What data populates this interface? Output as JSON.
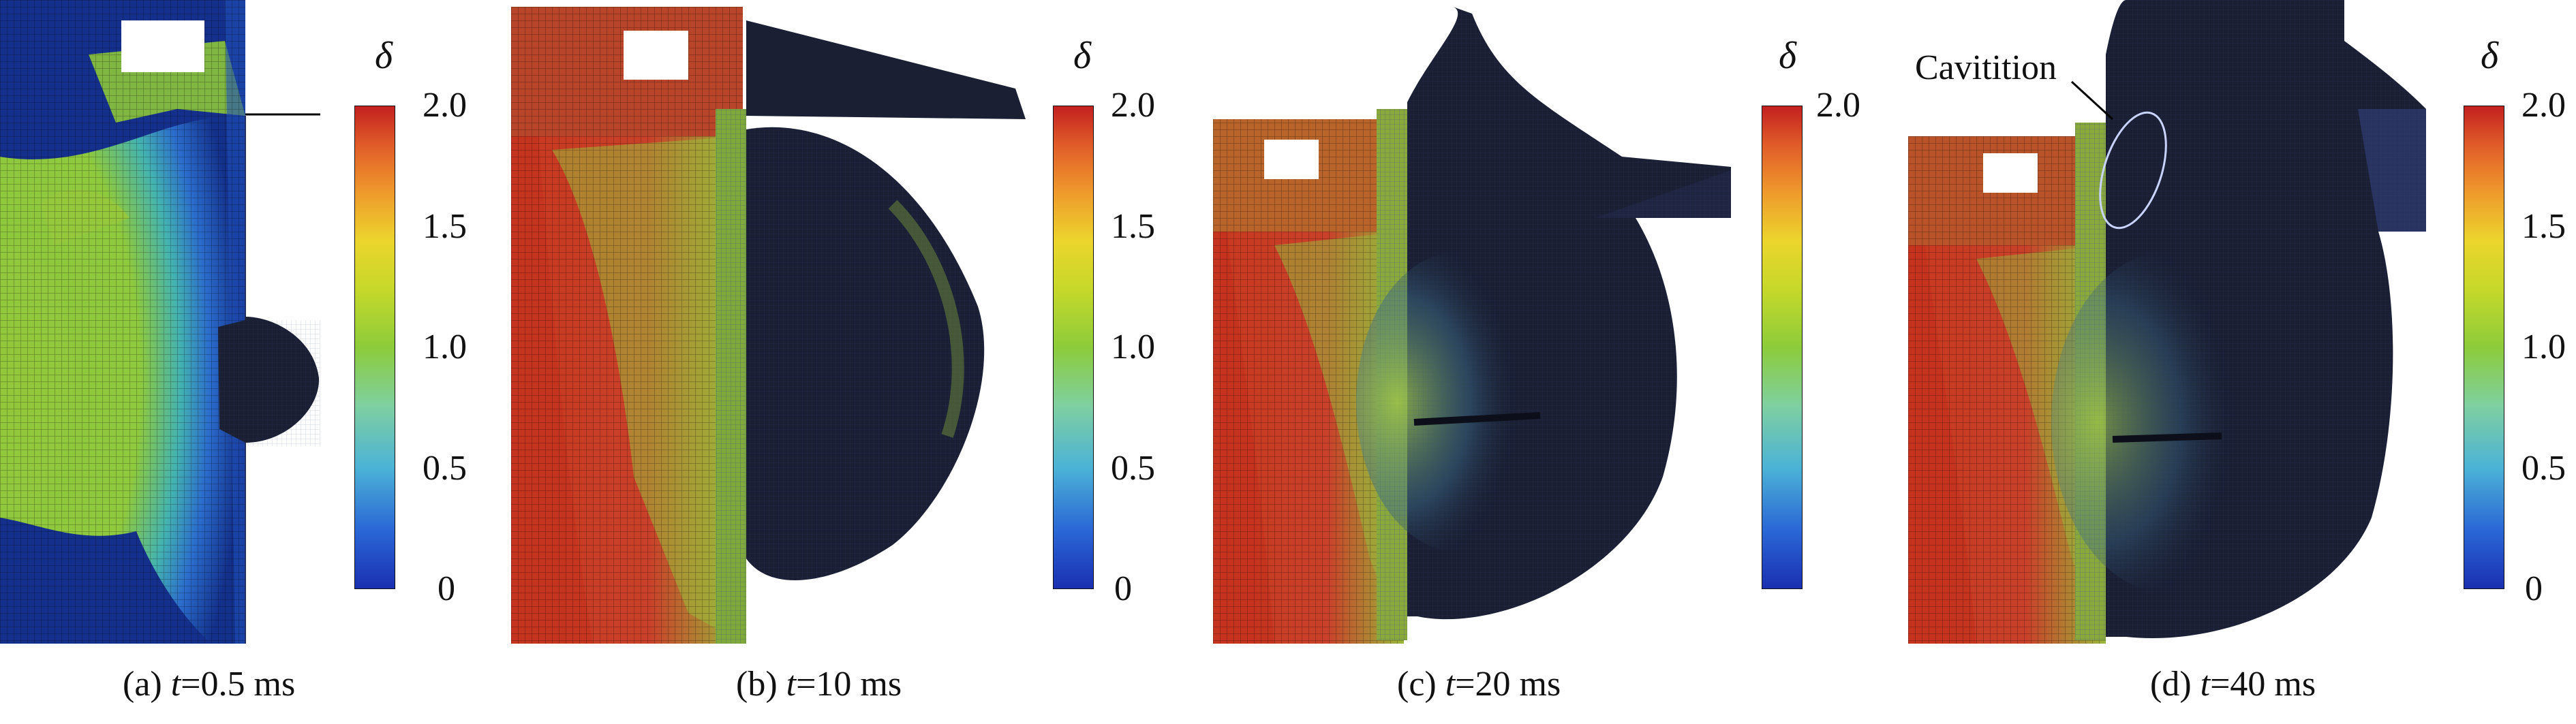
{
  "colorbar": {
    "symbol": "δ",
    "ticks": [
      "2.0",
      "1.5",
      "1.0",
      "0.5",
      "0"
    ],
    "range": [
      0,
      2.0
    ],
    "colormap": [
      "#1a3cb4",
      "#2a6fd0",
      "#3aa6d8",
      "#6cc9b4",
      "#8fd06a",
      "#9ad03a",
      "#c7d62a",
      "#e7d92a",
      "#f0a02c",
      "#e2632a",
      "#cf3526",
      "#c21f1f"
    ]
  },
  "panels": [
    {
      "id": "a",
      "label": "(a) ",
      "t_symbol": "t",
      "time": "=0.5 ms"
    },
    {
      "id": "b",
      "label": "(b) ",
      "t_symbol": "t",
      "time": "=10 ms"
    },
    {
      "id": "c",
      "label": "(c) ",
      "t_symbol": "t",
      "time": "=20 ms"
    },
    {
      "id": "d",
      "label": "(d) ",
      "t_symbol": "t",
      "time": "=40 ms",
      "annotation": "Cavitition"
    }
  ],
  "colors": {
    "deep_blue": "#13308a",
    "green": "#8cc63a",
    "red": "#c2361f",
    "bubble_dark": "#1a1f33",
    "bubble_edge": "#0c0f1a"
  }
}
